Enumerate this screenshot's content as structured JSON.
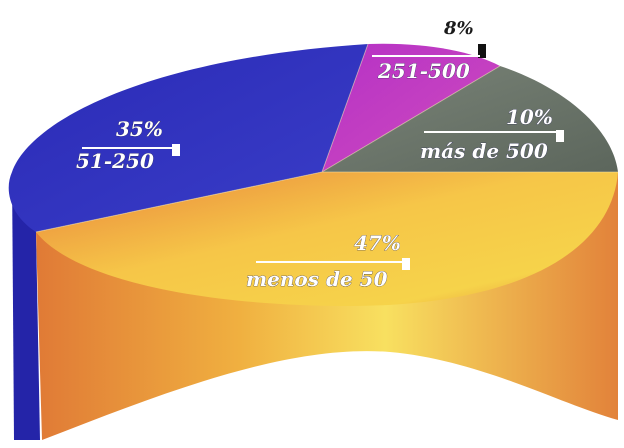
{
  "chart_data": {
    "type": "pie",
    "slices": [
      {
        "category": "menos de 50",
        "value": 47,
        "percent_label": "47%",
        "color": "#f2a93a"
      },
      {
        "category": "51-250",
        "value": 35,
        "percent_label": "35%",
        "color": "#2d2fb0"
      },
      {
        "category": "251-500",
        "value": 8,
        "percent_label": "8%",
        "color": "#c83cc0"
      },
      {
        "category": "más de 500",
        "value": 10,
        "percent_label": "10%",
        "color": "#6f7a6c"
      }
    ]
  }
}
